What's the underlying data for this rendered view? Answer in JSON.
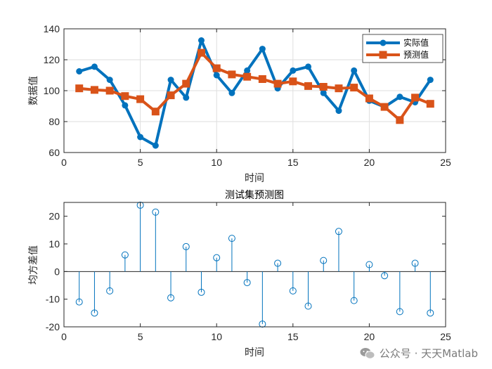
{
  "chart_data": [
    {
      "type": "line",
      "title": "",
      "xlabel": "时间",
      "ylabel": "数据值",
      "xlim": [
        0,
        25
      ],
      "ylim": [
        60,
        140
      ],
      "xticks": [
        0,
        5,
        10,
        15,
        20,
        25
      ],
      "yticks": [
        60,
        80,
        100,
        120,
        140
      ],
      "grid": true,
      "legend_position": "top-right",
      "x": [
        1,
        2,
        3,
        4,
        5,
        6,
        7,
        8,
        9,
        10,
        11,
        12,
        13,
        14,
        15,
        16,
        17,
        18,
        19,
        20,
        21,
        22,
        23,
        24
      ],
      "series": [
        {
          "name": "实际值",
          "color": "#0072BD",
          "marker": "circle",
          "values": [
            112.5,
            115.5,
            107,
            90.5,
            70,
            64.5,
            107,
            95.5,
            132.5,
            110,
            98.5,
            113,
            127,
            101.5,
            113,
            115.5,
            98.5,
            87,
            113,
            93.5,
            89.5,
            96,
            92.5,
            107
          ]
        },
        {
          "name": "预测值",
          "color": "#D95319",
          "marker": "square",
          "values": [
            101.5,
            100.5,
            100,
            96.5,
            94.5,
            86.5,
            97,
            104.5,
            124.5,
            114.5,
            110.5,
            109,
            107.5,
            104.5,
            106,
            103,
            102.5,
            101.5,
            102,
            95,
            89.5,
            81,
            95.5,
            91.5
          ]
        }
      ]
    },
    {
      "type": "stem",
      "title": "测试集预测图",
      "xlabel": "时间",
      "ylabel": "均方差值",
      "xlim": [
        0,
        25
      ],
      "ylim": [
        -20,
        25
      ],
      "xticks": [
        0,
        5,
        10,
        15,
        20,
        25
      ],
      "yticks": [
        -20,
        -10,
        0,
        10,
        20
      ],
      "grid": false,
      "x": [
        1,
        2,
        3,
        4,
        5,
        6,
        7,
        8,
        9,
        10,
        11,
        12,
        13,
        14,
        15,
        16,
        17,
        18,
        19,
        20,
        21,
        22,
        23,
        24
      ],
      "series": [
        {
          "color": "#0072BD",
          "marker": "circle-open",
          "values": [
            -11,
            -15,
            -7,
            6,
            24,
            21.5,
            -9.5,
            9,
            -7.5,
            5,
            12,
            -4,
            -19,
            3,
            -7,
            -12.5,
            4,
            14.5,
            -10.5,
            2.5,
            -1.5,
            -14.5,
            3,
            -15
          ]
        }
      ]
    }
  ],
  "watermark": {
    "text": "公众号 · 天天Matlab",
    "icon": "wechat-icon"
  }
}
